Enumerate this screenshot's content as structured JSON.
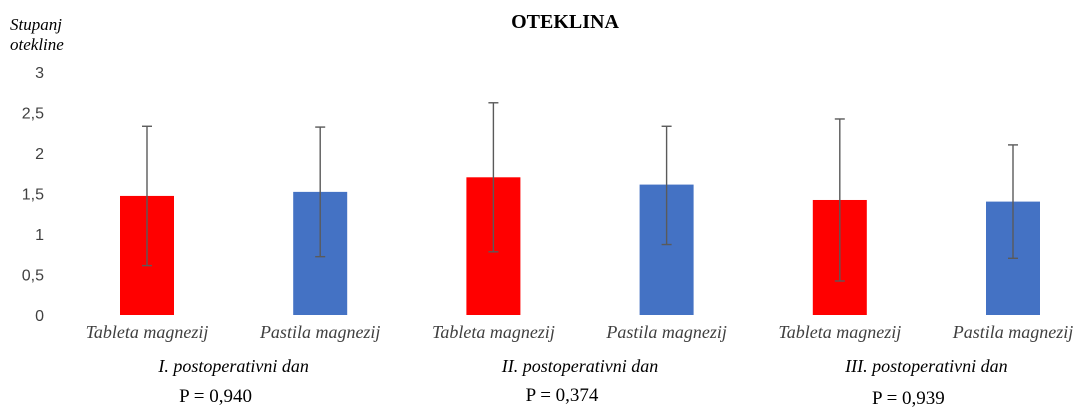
{
  "chart_data": {
    "type": "bar",
    "title": "OTEKLINA",
    "ylabel": [
      "Stupanj",
      "otekline"
    ],
    "ylim": [
      0,
      3
    ],
    "yticks": [
      "0",
      "0,5",
      "1",
      "1,5",
      "2",
      "2,5",
      "3"
    ],
    "grid": false,
    "categories": [
      "Tableta magnezij",
      "Pastila magnezij",
      "Tableta magnezij",
      "Pastila magnezij",
      "Tableta magnezij",
      "Pastila magnezij"
    ],
    "values": [
      1.47,
      1.52,
      1.7,
      1.61,
      1.42,
      1.4
    ],
    "error_high": [
      2.33,
      2.32,
      2.62,
      2.33,
      2.42,
      2.1
    ],
    "error_low": [
      0.61,
      0.72,
      0.78,
      0.87,
      0.42,
      0.7
    ],
    "bar_colors": [
      "#ff0000",
      "#4472c4",
      "#ff0000",
      "#4472c4",
      "#ff0000",
      "#4472c4"
    ],
    "groups": [
      {
        "label": "I. postoperativni dan",
        "p_value": "P = 0,940"
      },
      {
        "label": "II. postoperativni dan",
        "p_value": "P = 0,374"
      },
      {
        "label": "III. postoperativni dan",
        "p_value": "P = 0,939"
      }
    ]
  }
}
